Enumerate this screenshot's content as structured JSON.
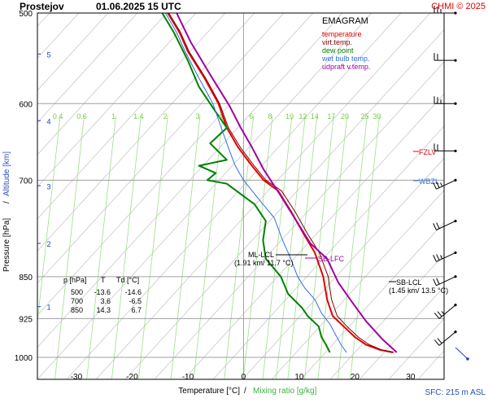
{
  "header": {
    "station": "Prostejov",
    "datetime": "01.06.2025 15 UTC",
    "credit": "CHMI © 2025"
  },
  "legend": {
    "title": "EMAGRAM",
    "items": [
      {
        "label": "temperature",
        "color": "#e00000"
      },
      {
        "label": "virt.temp.",
        "color": "#800000"
      },
      {
        "label": "dew point",
        "color": "#008000"
      },
      {
        "label": "wet bulb temp.",
        "color": "#3070e0"
      },
      {
        "label": "udpraft v.temp.",
        "color": "#a000a0"
      }
    ]
  },
  "footer": {
    "sfc": "SFC: 215 m ASL"
  },
  "table": {
    "headers": [
      "p [hPa]",
      "T",
      "Td [°C]"
    ],
    "rows": [
      [
        "500",
        "-13.6",
        "-14.6"
      ],
      [
        "700",
        "3.6",
        "-6.5"
      ],
      [
        "850",
        "14.3",
        "6.7"
      ]
    ]
  },
  "levels": {
    "fzlv": "FZLV",
    "wbzl": "WBZL",
    "sb_lfc": "SB-LFC",
    "ml_lcl": "ML-LCL",
    "ml_lcl_detail": "(1.91 km/ 11.7 °C)",
    "sb_lcl": "SB-LCL",
    "sb_lcl_detail": "(1.45 km/ 13.5 °C)"
  },
  "chart_data": {
    "type": "line",
    "xlabel": "Temperature [°C]",
    "xlabel2": "Mixing ratio [g/kg]",
    "ylabel": "Pressure [hPa]",
    "ylabel2": "Altitude [km]",
    "x_ticks": [
      -30,
      -20,
      -10,
      0,
      10,
      20,
      30
    ],
    "xlim": [
      -37,
      36
    ],
    "y_ticks": [
      500,
      600,
      700,
      850,
      925,
      1000
    ],
    "ylim": [
      1000,
      500
    ],
    "y_scale": "log",
    "altitude_ticks": [
      "1",
      "2",
      "3",
      "4",
      "5"
    ],
    "altitude_pressures": [
      903,
      795,
      708,
      621,
      543
    ],
    "mixing_ratio_labels": [
      "0.4",
      "0.6",
      "1",
      "1.4",
      "2",
      "3",
      "4",
      "6",
      "8",
      "10",
      "12",
      "14",
      "17",
      "20",
      "25",
      "30"
    ],
    "mixing_ratio_label_temps": [
      -32.9,
      -28.6,
      -22.9,
      -18.4,
      -13.6,
      -7.8,
      -3.7,
      1.8,
      5.2,
      8.7,
      11.1,
      13.2,
      16.2,
      18.6,
      22.2,
      24.4
    ],
    "fzlv_pressure": 656,
    "wbzl_pressure": 700,
    "series": [
      {
        "name": "temperature",
        "color": "#e00000",
        "points": [
          [
            26.8,
            990
          ],
          [
            24.5,
            985
          ],
          [
            22.0,
            975
          ],
          [
            20.0,
            960
          ],
          [
            18.0,
            940
          ],
          [
            16.0,
            920
          ],
          [
            15.0,
            890
          ],
          [
            14.3,
            850
          ],
          [
            12.8,
            810
          ],
          [
            10.8,
            780
          ],
          [
            8.5,
            745
          ],
          [
            6.2,
            715
          ],
          [
            3.6,
            700
          ],
          [
            1.5,
            680
          ],
          [
            -1.0,
            655
          ],
          [
            -3.0,
            630
          ],
          [
            -4.5,
            600
          ],
          [
            -7.0,
            570
          ],
          [
            -10.0,
            540
          ],
          [
            -11.5,
            520
          ],
          [
            -13.6,
            500
          ]
        ]
      },
      {
        "name": "virt.temp.",
        "color": "#800000",
        "points": [
          [
            27.0,
            990
          ],
          [
            24.8,
            985
          ],
          [
            22.6,
            975
          ],
          [
            20.6,
            960
          ],
          [
            18.6,
            940
          ],
          [
            16.8,
            920
          ],
          [
            15.8,
            890
          ],
          [
            15.2,
            850
          ],
          [
            13.6,
            810
          ],
          [
            11.5,
            780
          ],
          [
            9.2,
            745
          ],
          [
            6.8,
            715
          ],
          [
            4.0,
            700
          ],
          [
            1.9,
            680
          ],
          [
            -0.6,
            655
          ],
          [
            -2.7,
            630
          ],
          [
            -4.3,
            600
          ],
          [
            -6.8,
            570
          ],
          [
            -9.8,
            540
          ],
          [
            -11.3,
            520
          ],
          [
            -13.4,
            500
          ]
        ]
      },
      {
        "name": "dew point",
        "color": "#008000",
        "points": [
          [
            15.5,
            990
          ],
          [
            14.8,
            975
          ],
          [
            14.0,
            960
          ],
          [
            13.5,
            940
          ],
          [
            11.5,
            920
          ],
          [
            10.5,
            905
          ],
          [
            8.0,
            880
          ],
          [
            6.7,
            850
          ],
          [
            4.0,
            820
          ],
          [
            3.5,
            790
          ],
          [
            4.0,
            760
          ],
          [
            2.0,
            735
          ],
          [
            -3.0,
            705
          ],
          [
            -6.5,
            700
          ],
          [
            -5.0,
            690
          ],
          [
            -8.0,
            680
          ],
          [
            -3.0,
            672
          ],
          [
            -6.0,
            650
          ],
          [
            -3.0,
            630
          ],
          [
            -5.0,
            610
          ],
          [
            -8.0,
            580
          ],
          [
            -10.0,
            550
          ],
          [
            -12.5,
            520
          ],
          [
            -14.6,
            500
          ]
        ]
      },
      {
        "name": "wet bulb temp.",
        "color": "#3070e0",
        "points": [
          [
            18.5,
            990
          ],
          [
            17.5,
            975
          ],
          [
            16.5,
            955
          ],
          [
            15.5,
            935
          ],
          [
            14.0,
            915
          ],
          [
            12.8,
            890
          ],
          [
            11.0,
            870
          ],
          [
            9.7,
            850
          ],
          [
            8.5,
            820
          ],
          [
            7.0,
            790
          ],
          [
            5.5,
            755
          ],
          [
            3.0,
            730
          ],
          [
            0.0,
            700
          ],
          [
            -1.5,
            680
          ],
          [
            -2.5,
            660
          ],
          [
            -4.0,
            630
          ],
          [
            -5.5,
            600
          ],
          [
            -8.0,
            570
          ],
          [
            -10.5,
            540
          ],
          [
            -12.0,
            520
          ],
          [
            -14.0,
            500
          ]
        ]
      },
      {
        "name": "udpraft v.temp.",
        "color": "#a000a0",
        "points": [
          [
            27.5,
            990
          ],
          [
            25.0,
            965
          ],
          [
            22.0,
            930
          ],
          [
            19.5,
            895
          ],
          [
            17.0,
            860
          ],
          [
            15.0,
            820
          ],
          [
            12.0,
            795
          ],
          [
            9.5,
            760
          ],
          [
            6.5,
            720
          ],
          [
            3.6,
            685
          ],
          [
            1.5,
            655
          ],
          [
            -0.5,
            630
          ],
          [
            -2.5,
            603
          ],
          [
            -5.8,
            568
          ],
          [
            -9.5,
            530
          ],
          [
            -12.0,
            500
          ]
        ]
      }
    ],
    "wind_barb_pressures": [
      500,
      550,
      600,
      660,
      700,
      760,
      810,
      850,
      900,
      950,
      990
    ]
  }
}
